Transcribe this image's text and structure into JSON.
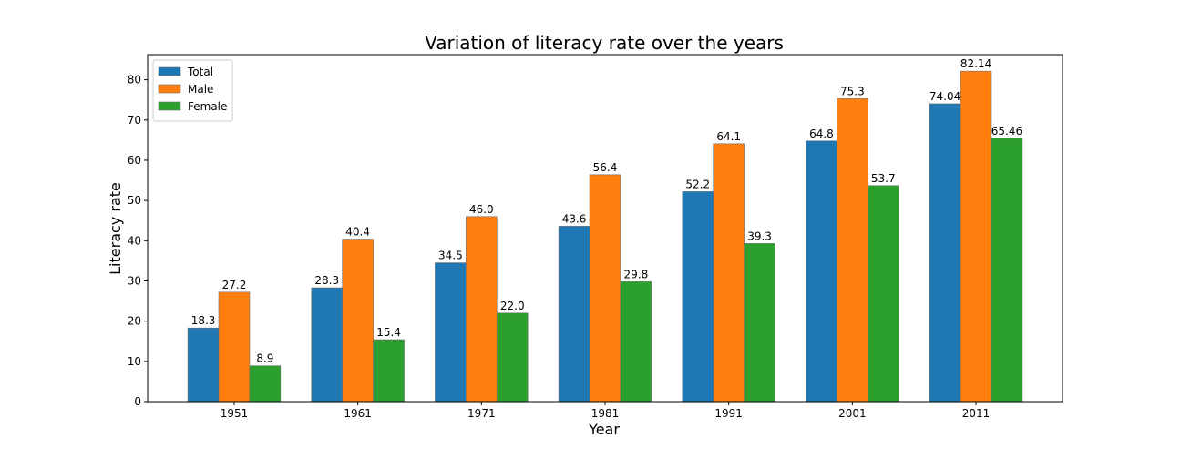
{
  "chart_data": {
    "type": "bar",
    "title": "Variation of literacy rate over the years",
    "xlabel": "Year",
    "ylabel": "Literacy rate",
    "categories": [
      "1951",
      "1961",
      "1971",
      "1981",
      "1991",
      "2001",
      "2011"
    ],
    "series": [
      {
        "name": "Total",
        "color": "#1f77b4",
        "values": [
          18.3,
          28.3,
          34.5,
          43.6,
          52.2,
          64.8,
          74.04
        ],
        "labels": [
          "18.3",
          "28.3",
          "34.5",
          "43.6",
          "52.2",
          "64.8",
          "74.04"
        ]
      },
      {
        "name": "Male",
        "color": "#ff7f0e",
        "values": [
          27.2,
          40.4,
          46.0,
          56.4,
          64.1,
          75.3,
          82.14
        ],
        "labels": [
          "27.2",
          "40.4",
          "46.0",
          "56.4",
          "64.1",
          "75.3",
          "82.14"
        ]
      },
      {
        "name": "Female",
        "color": "#2ca02c",
        "values": [
          8.9,
          15.4,
          22.0,
          29.8,
          39.3,
          53.7,
          65.46
        ],
        "labels": [
          "8.9",
          "15.4",
          "22.0",
          "29.8",
          "39.3",
          "53.7",
          "65.46"
        ]
      }
    ],
    "ylim": [
      0,
      86.25
    ],
    "yticks": [
      0,
      10,
      20,
      30,
      40,
      50,
      60,
      70,
      80
    ],
    "legend": "upper-left",
    "grid": false
  }
}
